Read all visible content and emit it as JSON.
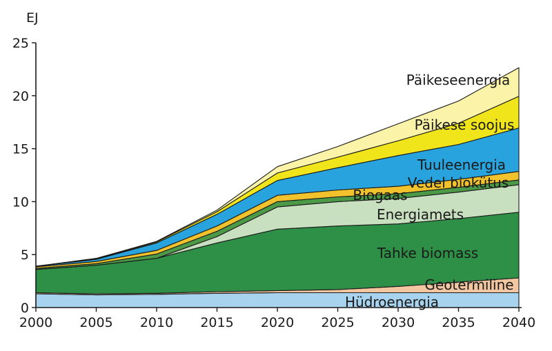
{
  "chart_data": {
    "type": "area",
    "stacked": true,
    "ylabel": "EJ",
    "xlim": [
      2000,
      2040
    ],
    "ylim": [
      0,
      25
    ],
    "x_ticks": [
      2000,
      2005,
      2010,
      2015,
      2020,
      2025,
      2030,
      2035,
      2040
    ],
    "y_ticks": [
      0,
      5,
      10,
      15,
      20,
      25
    ],
    "grid": false,
    "x": [
      2000,
      2005,
      2010,
      2015,
      2020,
      2025,
      2030,
      2035,
      2040
    ],
    "series": [
      {
        "name": "Hüdroenergia",
        "color": "#a8d3ef",
        "values": [
          1.3,
          1.2,
          1.25,
          1.35,
          1.4,
          1.4,
          1.4,
          1.4,
          1.4
        ]
      },
      {
        "name": "Geotermiline",
        "color": "#f2c6a0",
        "values": [
          0.1,
          0.1,
          0.1,
          0.15,
          0.2,
          0.3,
          0.6,
          1.0,
          1.4
        ]
      },
      {
        "name": "Tahke biomass",
        "color": "#2e8f46",
        "values": [
          2.2,
          2.7,
          3.3,
          4.6,
          5.8,
          6.0,
          5.9,
          6.0,
          6.2
        ]
      },
      {
        "name": "Energiamets",
        "color": "#c8e0c0",
        "values": [
          0.0,
          0.0,
          0.0,
          0.6,
          2.1,
          2.3,
          2.4,
          2.5,
          2.6
        ]
      },
      {
        "name": "Vedel biokütus",
        "color": "#4c9a48",
        "values": [
          0.1,
          0.15,
          0.4,
          0.5,
          0.5,
          0.45,
          0.45,
          0.45,
          0.45
        ]
      },
      {
        "name": "Biogaas",
        "color": "#f1c22b",
        "values": [
          0.15,
          0.2,
          0.35,
          0.5,
          0.6,
          0.65,
          0.7,
          0.75,
          0.8
        ]
      },
      {
        "name": "Tuuleenergia",
        "color": "#29a3dd",
        "values": [
          0.05,
          0.2,
          0.7,
          1.1,
          1.4,
          2.1,
          2.9,
          3.3,
          4.1
        ]
      },
      {
        "name": "Päikese soojus",
        "color": "#f0e41b",
        "values": [
          0.0,
          0.05,
          0.1,
          0.25,
          0.7,
          1.0,
          1.4,
          2.0,
          3.0
        ]
      },
      {
        "name": "Päikeseenergia",
        "color": "#fbf3a8",
        "values": [
          0.0,
          0.05,
          0.05,
          0.15,
          0.6,
          1.0,
          1.6,
          2.1,
          2.7
        ]
      }
    ]
  }
}
